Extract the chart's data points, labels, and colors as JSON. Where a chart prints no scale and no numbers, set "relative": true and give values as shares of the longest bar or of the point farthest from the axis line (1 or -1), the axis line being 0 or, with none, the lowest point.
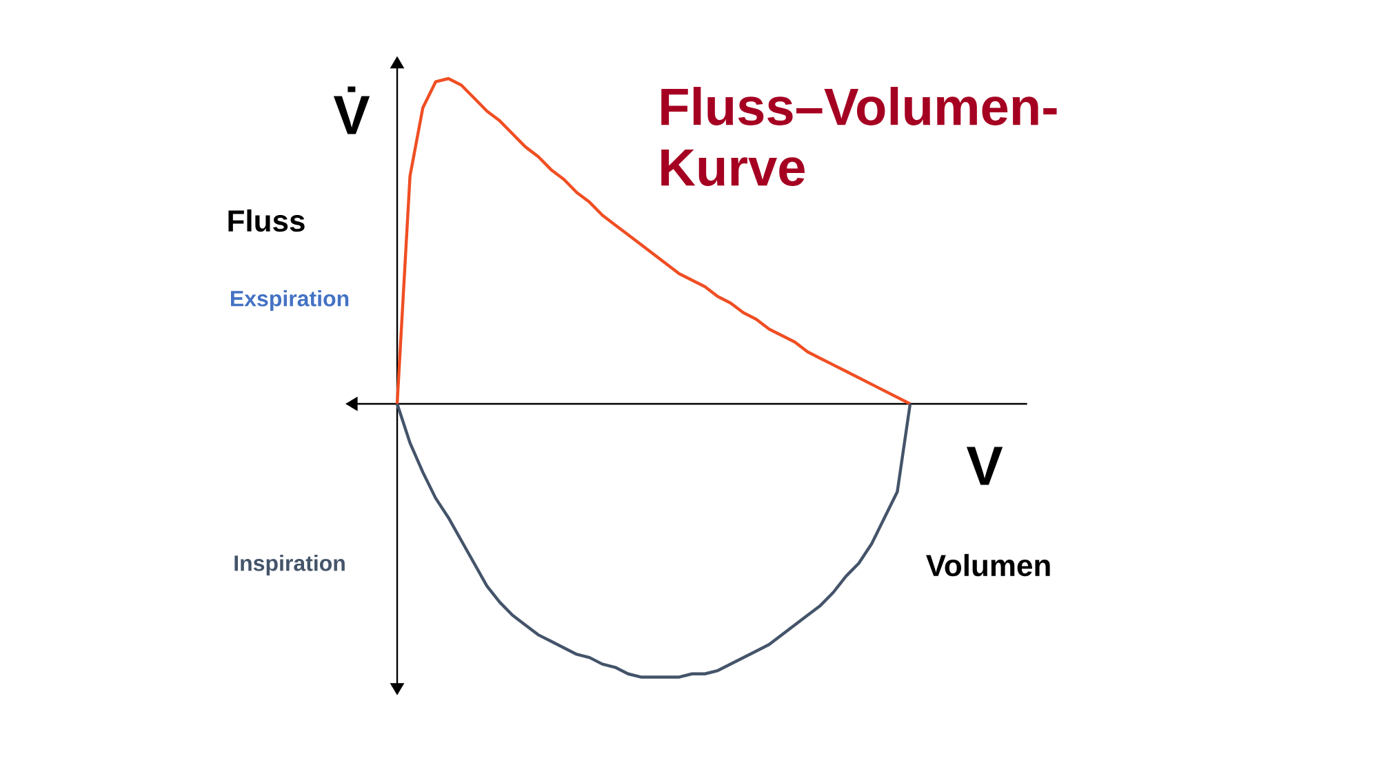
{
  "chart_data": {
    "type": "line",
    "relative": true,
    "title": "Fluss–Volumen-Kurve",
    "ylabel": "V̇",
    "xlabel": "V",
    "annotations": [
      "Fluss",
      "Exspiration",
      "Inspiration",
      "Volumen"
    ],
    "categories": [
      null,
      null,
      null,
      null,
      null,
      null,
      null,
      null,
      null,
      null,
      null,
      null,
      null,
      null,
      null,
      null,
      null,
      null,
      null,
      null,
      null,
      null,
      null,
      null,
      null,
      null,
      null,
      null,
      null,
      null,
      null,
      null,
      null,
      null,
      null,
      null,
      null,
      null,
      null,
      null,
      null
    ],
    "series": [
      {
        "color": "#f04e23",
        "values": [
          0,
          0.7,
          0.91,
          0.99,
          1,
          0.98,
          0.94,
          0.9,
          0.87,
          0.83,
          0.79,
          0.76,
          0.72,
          0.69,
          0.65,
          0.62,
          0.58,
          0.55,
          0.52,
          0.49,
          0.46,
          0.43,
          0.4,
          0.38,
          0.36,
          0.33,
          0.31,
          0.28,
          0.26,
          0.23,
          0.21,
          0.19,
          0.16,
          0.14,
          0.12,
          0.1,
          0.08,
          0.06,
          0.04,
          0.02,
          0
        ]
      },
      {
        "color": "#44546a",
        "values": [
          0,
          -0.12,
          -0.21,
          -0.29,
          -0.35,
          -0.42,
          -0.49,
          -0.56,
          -0.61,
          -0.65,
          -0.68,
          -0.71,
          -0.73,
          -0.75,
          -0.77,
          -0.78,
          -0.8,
          -0.81,
          -0.83,
          -0.84,
          -0.84,
          -0.84,
          -0.84,
          -0.83,
          -0.83,
          -0.82,
          -0.8,
          -0.78,
          -0.76,
          -0.74,
          -0.71,
          -0.68,
          -0.65,
          -0.62,
          -0.58,
          -0.53,
          -0.49,
          -0.43,
          -0.35,
          -0.27,
          0
        ]
      }
    ]
  }
}
